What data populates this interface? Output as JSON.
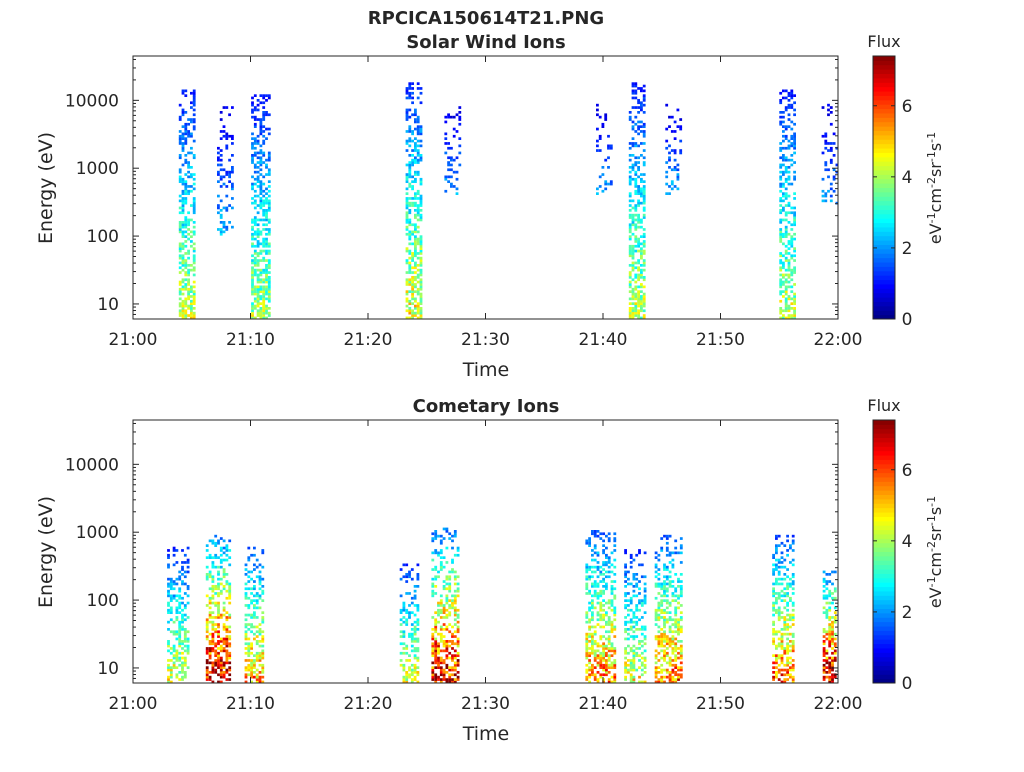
{
  "title": "RPCICA150614T21.PNG",
  "chart_data": [
    {
      "type": "heatmap",
      "title": "Solar Wind Ions",
      "xlabel": "Time",
      "ylabel": "Energy (eV)",
      "x_ticks": [
        "21:00",
        "21:10",
        "21:20",
        "21:30",
        "21:40",
        "21:50",
        "22:00"
      ],
      "xlim": [
        "21:00",
        "22:00"
      ],
      "y_scale": "log",
      "y_ticks": [
        "10",
        "100",
        "1000",
        "10000"
      ],
      "ylim": [
        6,
        45000
      ],
      "colorbar": {
        "title": "Flux",
        "unit": "eV-1cm-2sr-1s-1",
        "ticks": [
          "0",
          "2",
          "4",
          "6"
        ],
        "range": [
          0,
          7.4
        ],
        "colormap": "jet"
      },
      "bursts": [
        {
          "t_min": 4.5,
          "width_min": 1.2,
          "e_min": 6,
          "e_max": 15000,
          "peak_flux": 4.2,
          "density": 0.55
        },
        {
          "t_min": 7.8,
          "width_min": 1.3,
          "e_min": 100,
          "e_max": 9000,
          "peak_flux": 2.2,
          "density": 0.25
        },
        {
          "t_min": 10.8,
          "width_min": 1.5,
          "e_min": 6,
          "e_max": 12000,
          "peak_flux": 4.0,
          "density": 0.6
        },
        {
          "t_min": 23.8,
          "width_min": 1.2,
          "e_min": 6,
          "e_max": 18000,
          "peak_flux": 4.6,
          "density": 0.6
        },
        {
          "t_min": 27.2,
          "width_min": 1.4,
          "e_min": 400,
          "e_max": 9000,
          "peak_flux": 2.2,
          "density": 0.25
        },
        {
          "t_min": 40.0,
          "width_min": 1.2,
          "e_min": 400,
          "e_max": 9000,
          "peak_flux": 2.0,
          "density": 0.2
        },
        {
          "t_min": 42.9,
          "width_min": 1.4,
          "e_min": 6,
          "e_max": 18000,
          "peak_flux": 4.2,
          "density": 0.6
        },
        {
          "t_min": 46.0,
          "width_min": 1.4,
          "e_min": 400,
          "e_max": 9000,
          "peak_flux": 2.2,
          "density": 0.25
        },
        {
          "t_min": 55.7,
          "width_min": 1.4,
          "e_min": 6,
          "e_max": 14000,
          "peak_flux": 4.2,
          "density": 0.55
        },
        {
          "t_min": 59.2,
          "width_min": 1.2,
          "e_min": 300,
          "e_max": 9000,
          "peak_flux": 2.0,
          "density": 0.25
        }
      ]
    },
    {
      "type": "heatmap",
      "title": "Cometary Ions",
      "xlabel": "Time",
      "ylabel": "Energy (eV)",
      "x_ticks": [
        "21:00",
        "21:10",
        "21:20",
        "21:30",
        "21:40",
        "21:50",
        "22:00"
      ],
      "xlim": [
        "21:00",
        "22:00"
      ],
      "y_scale": "log",
      "y_ticks": [
        "10",
        "100",
        "1000",
        "10000"
      ],
      "ylim": [
        6,
        45000
      ],
      "colorbar": {
        "title": "Flux",
        "unit": "eV-1cm-2sr-1s-1",
        "ticks": [
          "0",
          "2",
          "4",
          "6"
        ],
        "range": [
          0,
          7.4
        ],
        "colormap": "jet"
      },
      "bursts": [
        {
          "t_min": 3.8,
          "width_min": 1.8,
          "e_min": 6,
          "e_max": 600,
          "peak_flux": 4.5,
          "density": 0.45
        },
        {
          "t_min": 7.2,
          "width_min": 2.0,
          "e_min": 6,
          "e_max": 900,
          "peak_flux": 7.2,
          "density": 0.55
        },
        {
          "t_min": 10.3,
          "width_min": 1.6,
          "e_min": 6,
          "e_max": 600,
          "peak_flux": 5.5,
          "density": 0.5
        },
        {
          "t_min": 23.5,
          "width_min": 1.6,
          "e_min": 6,
          "e_max": 350,
          "peak_flux": 4.6,
          "density": 0.45
        },
        {
          "t_min": 26.5,
          "width_min": 2.2,
          "e_min": 6,
          "e_max": 1200,
          "peak_flux": 6.8,
          "density": 0.55
        },
        {
          "t_min": 39.8,
          "width_min": 2.6,
          "e_min": 6,
          "e_max": 1100,
          "peak_flux": 5.6,
          "density": 0.55
        },
        {
          "t_min": 42.7,
          "width_min": 1.8,
          "e_min": 6,
          "e_max": 600,
          "peak_flux": 4.6,
          "density": 0.45
        },
        {
          "t_min": 45.5,
          "width_min": 2.2,
          "e_min": 6,
          "e_max": 900,
          "peak_flux": 5.8,
          "density": 0.55
        },
        {
          "t_min": 55.3,
          "width_min": 1.8,
          "e_min": 6,
          "e_max": 900,
          "peak_flux": 5.8,
          "density": 0.5
        },
        {
          "t_min": 59.2,
          "width_min": 1.0,
          "e_min": 6,
          "e_max": 300,
          "peak_flux": 7.2,
          "density": 0.6
        }
      ]
    }
  ]
}
